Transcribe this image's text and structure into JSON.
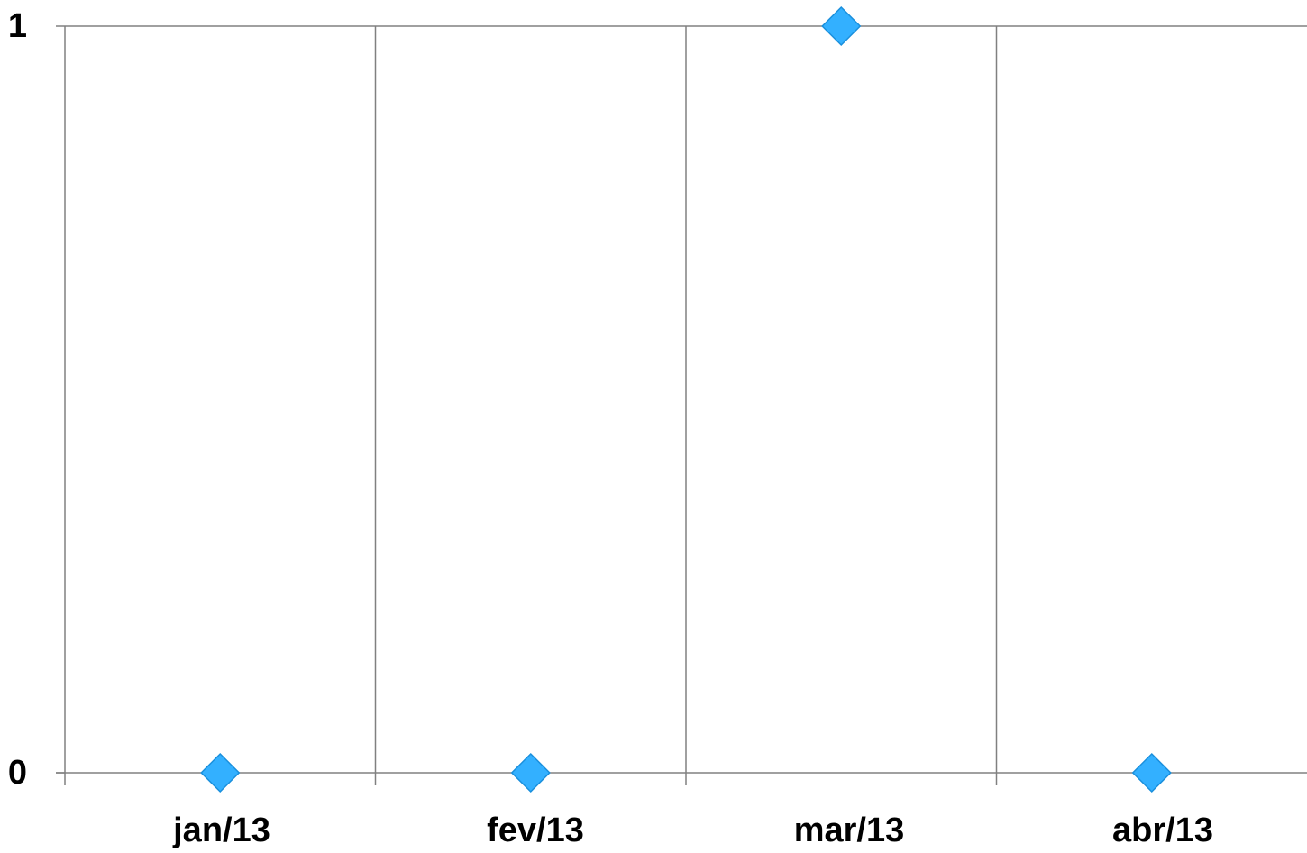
{
  "chart_data": {
    "type": "scatter",
    "title": "",
    "xlabel": "",
    "ylabel": "",
    "categories": [
      "jan/13",
      "fev/13",
      "mar/13",
      "abr/13"
    ],
    "series": [
      {
        "values": [
          0,
          0,
          1,
          0
        ]
      }
    ],
    "ylim": [
      0,
      1
    ],
    "y_ticks": [
      "0",
      "1"
    ],
    "grid": {
      "horizontal": true,
      "vertical": true
    },
    "legend": "none",
    "marker": "diamond",
    "colors": {
      "marker_fill": "#33b0ff",
      "marker_stroke": "#1a8fdc",
      "grid": "#808080",
      "axis": "#808080",
      "background": "#ffffff"
    }
  }
}
